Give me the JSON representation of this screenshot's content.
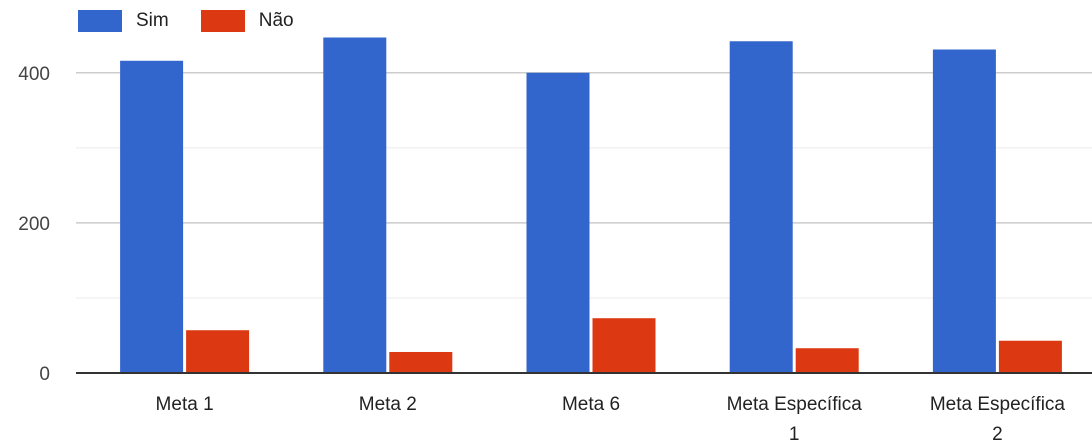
{
  "chart_data": {
    "type": "bar",
    "categories": [
      "Meta 1",
      "Meta 2",
      "Meta 6",
      "Meta Específica 1",
      "Meta Específica 2"
    ],
    "category_lines": [
      [
        "Meta 1"
      ],
      [
        "Meta 2"
      ],
      [
        "Meta 6"
      ],
      [
        "Meta Específica",
        "1"
      ],
      [
        "Meta Específica",
        "2"
      ]
    ],
    "series": [
      {
        "name": "Sim",
        "color": "#3366cc",
        "values": [
          416,
          447,
          400,
          442,
          431
        ]
      },
      {
        "name": "Não",
        "color": "#dc3912",
        "values": [
          57,
          28,
          73,
          33,
          43
        ]
      }
    ],
    "yticks": [
      0,
      200,
      400
    ],
    "ylim": [
      0,
      453
    ],
    "grid": true,
    "legend_position": "top-left",
    "title": "",
    "xlabel": "",
    "ylabel": ""
  }
}
